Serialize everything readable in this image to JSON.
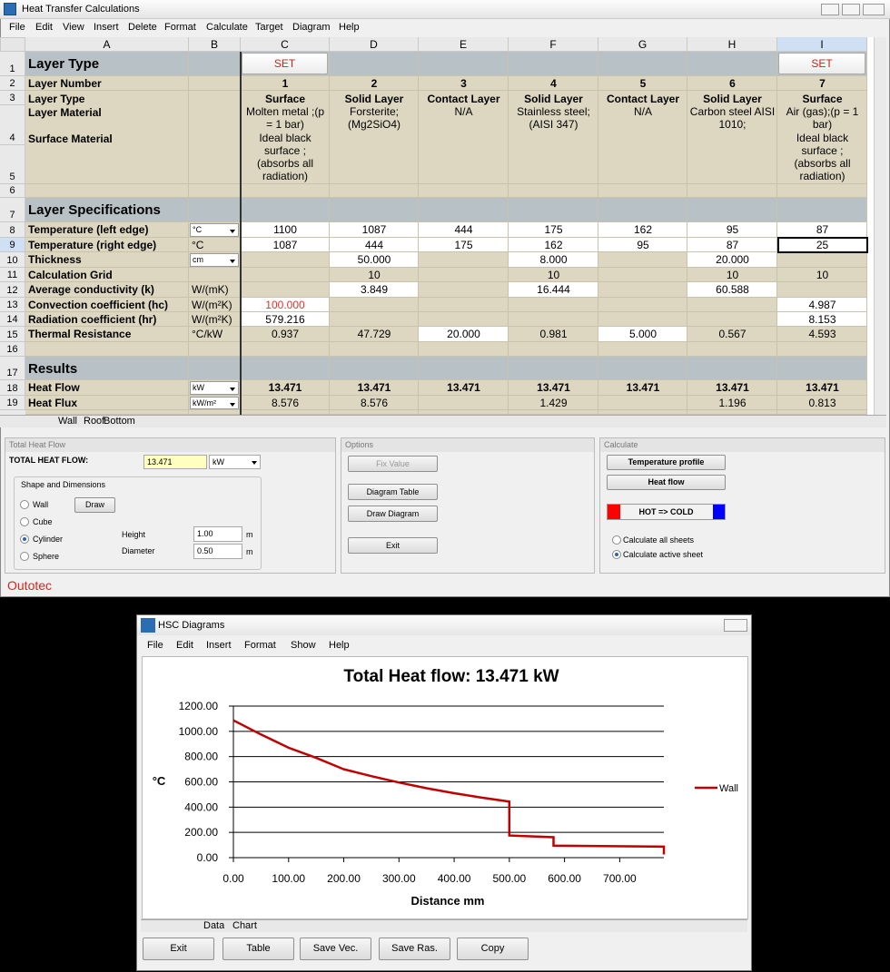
{
  "main_window": {
    "title": "Heat Transfer Calculations",
    "menu": [
      "File",
      "Edit",
      "View",
      "Insert",
      "Delete",
      "Format",
      "Calculate",
      "Target",
      "Diagram",
      "Help"
    ]
  },
  "sheet": {
    "columns": [
      "A",
      "B",
      "C",
      "D",
      "E",
      "F",
      "G",
      "H",
      "I"
    ],
    "row_numbers": [
      1,
      2,
      3,
      4,
      5,
      6,
      7,
      8,
      9,
      10,
      11,
      12,
      13,
      14,
      15,
      16,
      17,
      18,
      19
    ],
    "set_label": "SET",
    "section_layer_type": "Layer Type",
    "section_specifications": "Layer Specifications",
    "section_results": "Results",
    "layer_number_label": "Layer Number",
    "layer_labels": [
      "Layer Type",
      "Layer Material",
      "Surface Material"
    ],
    "layers": [
      {
        "number": "1",
        "type": "Surface",
        "material": "Molten metal ;(p = 1 bar)",
        "surface": "Ideal black surface ; (absorbs all radiation)"
      },
      {
        "number": "2",
        "type": "Solid Layer",
        "material": "Forsterite; (Mg2SiO4)"
      },
      {
        "number": "3",
        "type": "Contact Layer",
        "material": "N/A"
      },
      {
        "number": "4",
        "type": "Solid Layer",
        "material": "Stainless steel; (AISI 347)"
      },
      {
        "number": "5",
        "type": "Contact Layer",
        "material": "N/A"
      },
      {
        "number": "6",
        "type": "Solid Layer",
        "material": "Carbon steel AISI 1010;"
      },
      {
        "number": "7",
        "type": "Surface",
        "material": "Air (gas);(p = 1 bar)",
        "surface": "Ideal black surface ; (absorbs all radiation)"
      }
    ],
    "rows": [
      {
        "num": 8,
        "label": "Temperature (left edge)",
        "unit": "°C",
        "dropdown": true,
        "values": [
          "1100",
          "1087",
          "444",
          "175",
          "162",
          "95",
          "87"
        ]
      },
      {
        "num": 9,
        "label": "Temperature (right edge)",
        "unit": "°C",
        "values": [
          "1087",
          "444",
          "175",
          "162",
          "95",
          "87",
          "25"
        ]
      },
      {
        "num": 10,
        "label": "Thickness",
        "unit": "cm",
        "dropdown": true,
        "values": [
          null,
          "50.000",
          null,
          "8.000",
          null,
          "20.000",
          null
        ]
      },
      {
        "num": 11,
        "label": "Calculation Grid",
        "values": [
          null,
          "10",
          null,
          "10",
          null,
          "10",
          "10"
        ]
      },
      {
        "num": 12,
        "label": "Average conductivity (k)",
        "unit": "W/(mK)",
        "values": [
          null,
          "3.849",
          null,
          "16.444",
          null,
          "60.588",
          null
        ]
      },
      {
        "num": 13,
        "label": "Convection coefficient (hc)",
        "unit": "W/(m²K)",
        "values": [
          "100.000",
          null,
          null,
          null,
          null,
          null,
          "4.987"
        ]
      },
      {
        "num": 14,
        "label": "Radiation coefficient (hr)",
        "unit": "W/(m²K)",
        "values": [
          "579.216",
          null,
          null,
          null,
          null,
          null,
          "8.153"
        ]
      },
      {
        "num": 15,
        "label": "Thermal Resistance",
        "unit": "°C/kW",
        "values": [
          "0.937",
          "47.729",
          "20.000",
          "0.981",
          "5.000",
          "0.567",
          "4.593"
        ]
      },
      {
        "num": 18,
        "label": "Heat Flow",
        "unit": "kW",
        "dropdown": true,
        "bold": true,
        "values": [
          "13.471",
          "13.471",
          "13.471",
          "13.471",
          "13.471",
          "13.471",
          "13.471"
        ]
      },
      {
        "num": 19,
        "label": "Heat Flux",
        "unit": "kW/m²",
        "dropdown": true,
        "values": [
          "8.576",
          "8.576",
          null,
          "1.429",
          null,
          "1.196",
          "0.813"
        ]
      }
    ],
    "tabs": [
      "Wall",
      "Roof",
      "Bottom"
    ]
  },
  "panels": {
    "total_heat_flow": {
      "title": "Total Heat Flow",
      "label": "TOTAL HEAT FLOW:",
      "value": "13.471",
      "unit": "kW",
      "group": "Shape and Dimensions",
      "shapes": [
        "Wall",
        "Cube",
        "Cylinder",
        "Sphere"
      ],
      "draw": "Draw",
      "height_label": "Height",
      "height": "1.00",
      "diameter_label": "Diameter",
      "diameter": "0.50",
      "dim_unit": "m"
    },
    "options": {
      "title": "Options",
      "buttons": [
        "Fix Value",
        "Diagram Table",
        "Draw Diagram",
        "Exit"
      ]
    },
    "calculate": {
      "title": "Calculate",
      "buttons": [
        "Temperature profile",
        "Heat flow"
      ],
      "direction": "HOT => COLD",
      "radios": [
        "Calculate all sheets",
        "Calculate active sheet"
      ]
    }
  },
  "logo": "Outotec",
  "diagram_window": {
    "title": "HSC Diagrams",
    "menu": [
      "File",
      "Edit",
      "Insert",
      "Format",
      "Show",
      "Help"
    ],
    "tabs": [
      "Data",
      "Chart"
    ],
    "buttons": [
      "Exit",
      "Table",
      "Save Vec.",
      "Save Ras.",
      "Copy"
    ]
  },
  "chart_data": {
    "type": "line",
    "title": "Total Heat flow: 13.471 kW",
    "x_label": "Distance mm",
    "y_label": "°C",
    "x": [
      0,
      50,
      100,
      150,
      200,
      250,
      300,
      350,
      400,
      450,
      500,
      500,
      580,
      580,
      780,
      780
    ],
    "series": [
      {
        "name": "Wall",
        "color": "#c00000",
        "values": [
          1087,
          975,
          870,
          790,
          700,
          645,
          595,
          550,
          510,
          475,
          444,
          175,
          162,
          95,
          87,
          25
        ]
      }
    ],
    "xlim": [
      0,
      780
    ],
    "ylim": [
      0,
      1200
    ],
    "xticks": [
      {
        "value": 0,
        "label": "0.00"
      },
      {
        "value": 100,
        "label": "100.00"
      },
      {
        "value": 200,
        "label": "200.00"
      },
      {
        "value": 300,
        "label": "300.00"
      },
      {
        "value": 400,
        "label": "400.00"
      },
      {
        "value": 500,
        "label": "500.00"
      },
      {
        "value": 600,
        "label": "600.00"
      },
      {
        "value": 700,
        "label": "700.00"
      }
    ],
    "yticks": [
      {
        "value": 0,
        "label": "0.00"
      },
      {
        "value": 200,
        "label": "200.00"
      },
      {
        "value": 400,
        "label": "400.00"
      },
      {
        "value": 600,
        "label": "600.00"
      },
      {
        "value": 800,
        "label": "800.00"
      },
      {
        "value": 1000,
        "label": "1000.00"
      },
      {
        "value": 1200,
        "label": "1200.00"
      }
    ],
    "grid": true,
    "legend": "right"
  }
}
